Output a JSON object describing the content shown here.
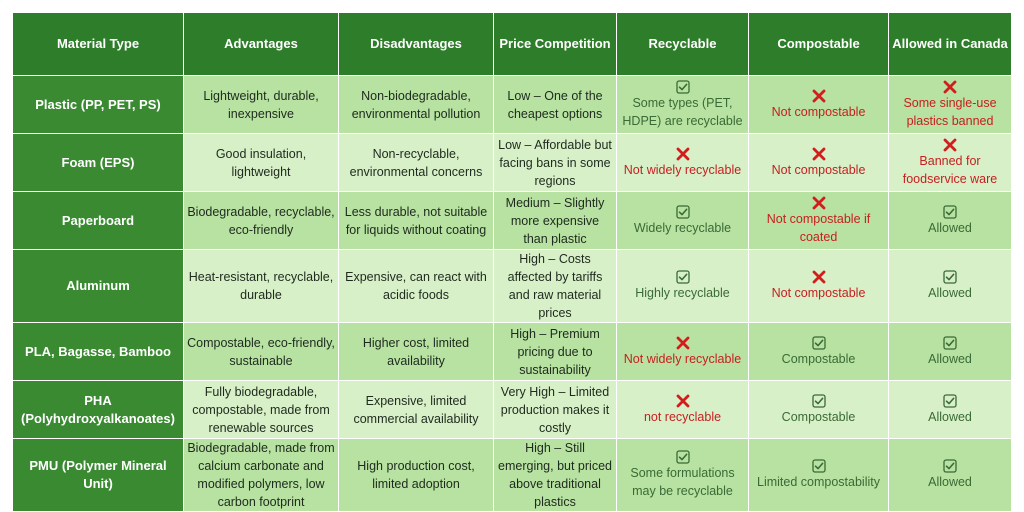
{
  "table": {
    "headers": [
      "Material Type",
      "Advantages",
      "Disadvantages",
      "Price Competition",
      "Recyclable",
      "Compostable",
      "Allowed in Canada"
    ],
    "rows": [
      {
        "material": "Plastic (PP, PET, PS)",
        "advantages": "Lightweight, durable, inexpensive",
        "disadvantages": "Non-biodegradable, environmental pollution",
        "price": "Low – One of the cheapest options",
        "recyclable": {
          "icon": "check-icon",
          "text": "Some types (PET, HDPE) are recyclable"
        },
        "compostable": {
          "icon": "cross-icon",
          "text": "Not compostable"
        },
        "allowed": {
          "icon": "cross-icon",
          "text": "Some single-use plastics banned"
        }
      },
      {
        "material": "Foam (EPS)",
        "advantages": "Good insulation, lightweight",
        "disadvantages": "Non-recyclable, environmental concerns",
        "price": "Low – Affordable but facing bans in some regions",
        "recyclable": {
          "icon": "cross-icon",
          "text": "Not widely recyclable"
        },
        "compostable": {
          "icon": "cross-icon",
          "text": "Not compostable"
        },
        "allowed": {
          "icon": "cross-icon",
          "text": "Banned for foodservice ware"
        }
      },
      {
        "material": "Paperboard",
        "advantages": "Biodegradable, recyclable, eco-friendly",
        "disadvantages": "Less durable, not suitable for liquids without coating",
        "price": "Medium – Slightly more expensive than plastic",
        "recyclable": {
          "icon": "check-icon",
          "text": "Widely recyclable"
        },
        "compostable": {
          "icon": "cross-icon",
          "text": "Not compostable if coated"
        },
        "allowed": {
          "icon": "check-icon",
          "text": "Allowed"
        }
      },
      {
        "material": "Aluminum",
        "advantages": "Heat-resistant, recyclable, durable",
        "disadvantages": "Expensive, can react with acidic foods",
        "price": "High – Costs affected by tariffs and raw material prices",
        "recyclable": {
          "icon": "check-icon",
          "text": "Highly recyclable"
        },
        "compostable": {
          "icon": "cross-icon",
          "text": "Not compostable"
        },
        "allowed": {
          "icon": "check-icon",
          "text": "Allowed"
        }
      },
      {
        "material": "PLA, Bagasse, Bamboo",
        "advantages": "Compostable, eco-friendly, sustainable",
        "disadvantages": "Higher cost, limited availability",
        "price": "High – Premium pricing due to sustainability",
        "recyclable": {
          "icon": "cross-icon",
          "text": "Not widely recyclable"
        },
        "compostable": {
          "icon": "check-icon",
          "text": "Compostable"
        },
        "allowed": {
          "icon": "check-icon",
          "text": "Allowed"
        }
      },
      {
        "material": "PHA (Polyhydroxyalkanoates)",
        "advantages": "Fully biodegradable, compostable, made from renewable sources",
        "disadvantages": "Expensive, limited commercial availability",
        "price": "Very High – Limited production makes it costly",
        "recyclable": {
          "icon": "cross-icon",
          "text": "not recyclable"
        },
        "compostable": {
          "icon": "check-icon",
          "text": "Compostable"
        },
        "allowed": {
          "icon": "check-icon",
          "text": "Allowed"
        }
      },
      {
        "material": "PMU (Polymer Mineral Unit)",
        "advantages": "Biodegradable, made from calcium carbonate and modified polymers, low carbon footprint",
        "disadvantages": "High production cost, limited adoption",
        "price": "High – Still emerging, but priced above traditional plastics",
        "recyclable": {
          "icon": "check-icon",
          "text": "Some formulations may be recyclable"
        },
        "compostable": {
          "icon": "check-icon",
          "text": "Limited compostability"
        },
        "allowed": {
          "icon": "check-icon",
          "text": "Allowed"
        }
      }
    ]
  },
  "colors": {
    "header": "#2e7d2a",
    "row_header": "#3a8a32",
    "row_odd": "#b7e2a1",
    "row_even": "#d8f0c8",
    "positive_text": "#3a6a36",
    "negative_text": "#c62020"
  }
}
